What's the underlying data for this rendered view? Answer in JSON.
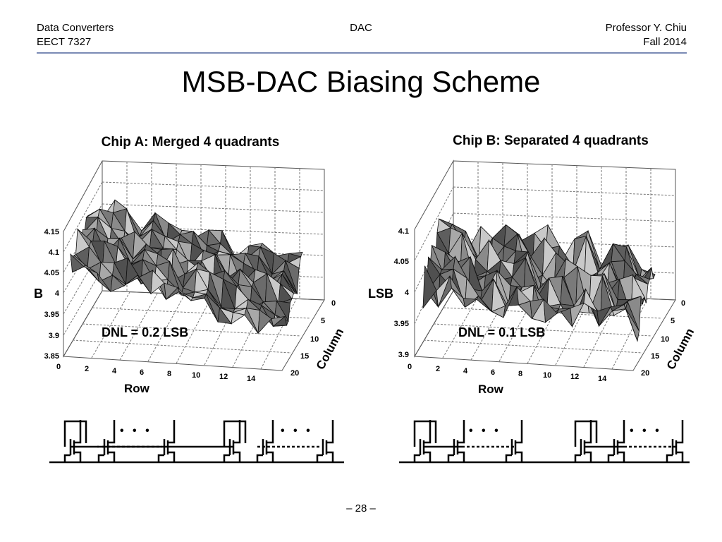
{
  "header": {
    "course_name": "Data Converters",
    "course_code": "EECT 7327",
    "topic": "DAC",
    "instructor": "Professor Y. Chiu",
    "term": "Fall 2014"
  },
  "slide": {
    "title": "MSB-DAC Biasing Scheme",
    "page_number": "– 28 –"
  },
  "plots": [
    {
      "title": "Chip A: Merged 4 quadrants",
      "annotation": "DNL = 0.2 LSB",
      "z_axis_label": "B",
      "x_axis_label": "Row",
      "y_axis_label": "Column",
      "z_ticks": [
        "4.15",
        "4.1",
        "4.05",
        "4",
        "3.95",
        "3.9",
        "3.85"
      ],
      "row_ticks": [
        "0",
        "2",
        "4",
        "6",
        "8",
        "10",
        "12",
        "14"
      ],
      "col_ticks": [
        "0",
        "5",
        "10",
        "15",
        "20"
      ]
    },
    {
      "title": "Chip B: Separated 4 quadrants",
      "annotation": "DNL = 0.1 LSB",
      "z_axis_label": "LSB",
      "x_axis_label": "Row",
      "y_axis_label": "Column",
      "z_ticks": [
        "4.1",
        "4.05",
        "4",
        "3.95",
        "3.9"
      ],
      "row_ticks": [
        "0",
        "2",
        "4",
        "6",
        "8",
        "10",
        "12",
        "14"
      ],
      "col_ticks": [
        "0",
        "5",
        "10",
        "15",
        "20"
      ]
    }
  ],
  "schematics": [
    {
      "ellipsis": "• • •",
      "ellipsis_2": "• • •"
    },
    {
      "ellipsis": "• • •",
      "ellipsis_2": "• • •"
    }
  ]
}
